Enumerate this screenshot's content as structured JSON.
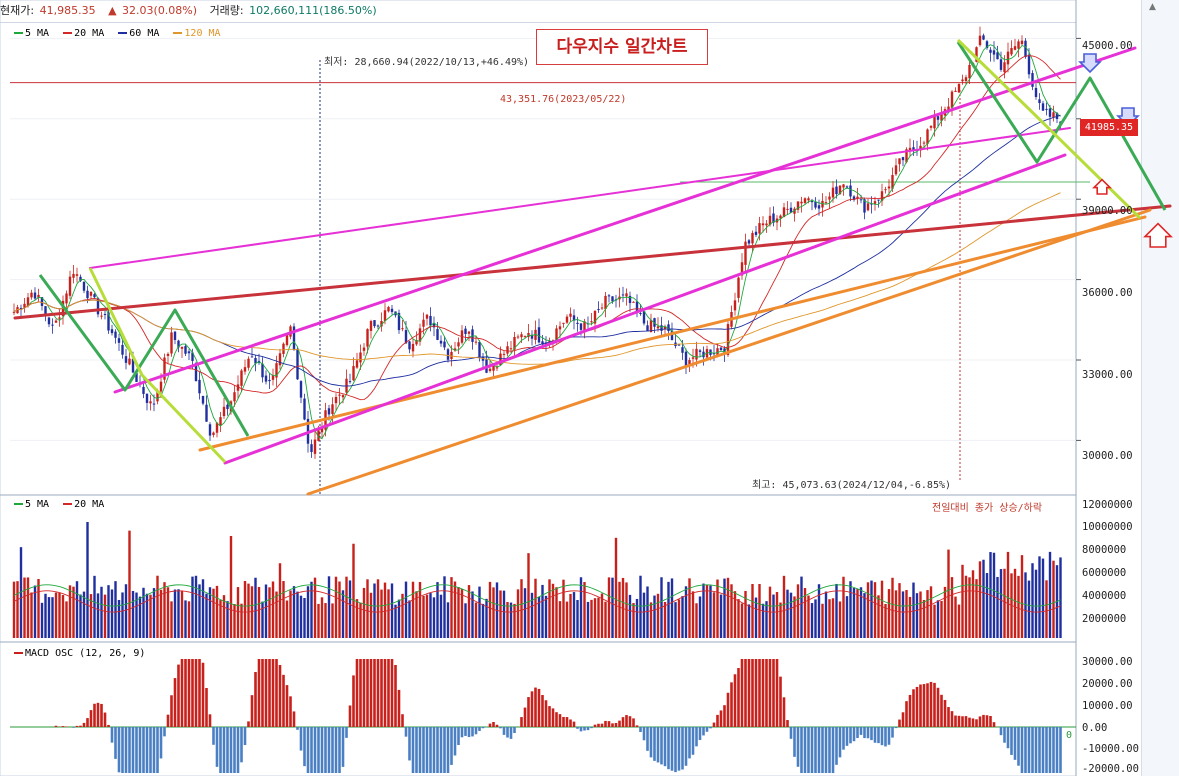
{
  "header": {
    "price_label": "현재가:",
    "price_value": "41,985.35",
    "change_icon": "up-triangle-icon",
    "change_value": "32.03(0.08%)",
    "volume_label": "거래량:",
    "volume_value": "102,660,111(186.50%)"
  },
  "price_panel": {
    "title": "다우지수 일간차트",
    "legend": [
      {
        "name": "5 MA",
        "color": "#1ea83c"
      },
      {
        "name": "20 MA",
        "color": "#d42828"
      },
      {
        "name": "60 MA",
        "color": "#1f2fa0"
      },
      {
        "name": "120 MA",
        "color": "#e0962a"
      }
    ],
    "low_annotation": "최저: 28,660.94(2022/10/13,+46.49%)",
    "level_annotation": "43,351.76(2023/05/22)",
    "high_annotation": "최고: 45,073.63(2024/12/04,-6.85%)",
    "current_price_tag": "41985.35",
    "y_ticks": [
      "45000.00",
      "42000.00",
      "39000.00",
      "36000.00",
      "33000.00",
      "30000.00"
    ]
  },
  "volume_panel": {
    "legend": [
      {
        "name": "5 MA",
        "color": "#1ea83c"
      },
      {
        "name": "20 MA",
        "color": "#d42828"
      }
    ],
    "note": "전일대비 종가 상승/하락",
    "y_ticks": [
      "12000000",
      "10000000",
      "8000000",
      "6000000",
      "4000000",
      "2000000"
    ]
  },
  "macd_panel": {
    "legend": "MACD OSC (12, 26, 9)",
    "y_ticks": [
      "30000.00",
      "20000.00",
      "10000.00",
      "0.00",
      "-10000.00",
      "-20000.00"
    ],
    "zero_label": "0"
  },
  "colors": {
    "up": "#c8211b",
    "down": "#1f2fa0",
    "trend_magenta": "#e631d6",
    "trend_orange": "#ef8c2f",
    "trend_red": "#c8323a",
    "zigzag_green": "#3aaa55",
    "zigzag_lime": "#b7dd3a",
    "macd_pos": "#c8211b",
    "macd_neg": "#4a7fc4"
  },
  "chart_data": {
    "type": "candlestick",
    "title": "다우지수 일간차트",
    "ylim": [
      28000,
      45500
    ],
    "series": [
      {
        "name": "5 MA"
      },
      {
        "name": "20 MA"
      },
      {
        "name": "60 MA"
      },
      {
        "name": "120 MA"
      }
    ],
    "close_path": [
      34800,
      35600,
      34100,
      36400,
      35200,
      34000,
      32600,
      31200,
      33900,
      33000,
      30200,
      31500,
      33300,
      32000,
      34200,
      29500,
      31300,
      32200,
      34200,
      34900,
      33600,
      34600,
      33200,
      34300,
      32600,
      33400,
      34100,
      33700,
      34600,
      34200,
      35200,
      35300,
      34300,
      34100,
      33000,
      33300,
      33500,
      37300,
      38100,
      38500,
      39100,
      38800,
      39700,
      38700,
      39200,
      40500,
      41200,
      42300,
      43300,
      45000,
      44000,
      45000,
      42200,
      41985
    ],
    "key_levels": {
      "low": 28660.94,
      "high": 45073.63,
      "current": 41985.35,
      "level_20230522": 43351.76
    }
  }
}
